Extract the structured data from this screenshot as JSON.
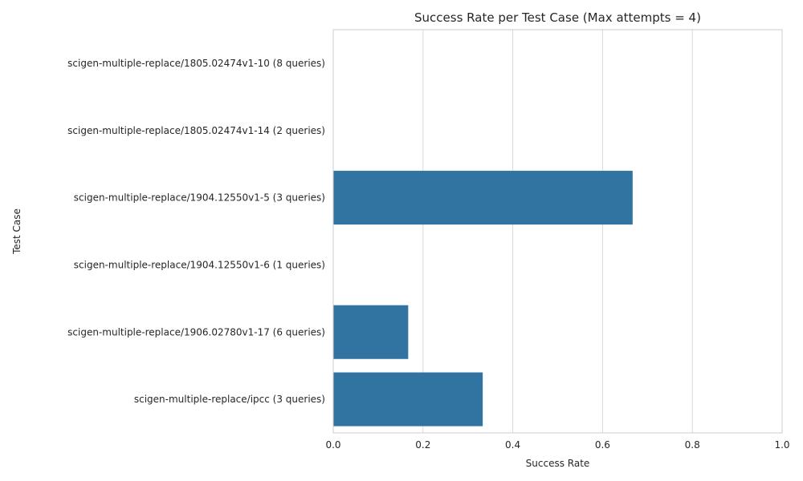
{
  "chart_data": {
    "type": "bar",
    "orientation": "horizontal",
    "title": "Success Rate per Test Case (Max attempts = 4)",
    "xlabel": "Success Rate",
    "ylabel": "Test Case",
    "xlim": [
      0,
      1
    ],
    "xticks": [
      "0.0",
      "0.2",
      "0.4",
      "0.6",
      "0.8",
      "1.0"
    ],
    "grid": "vertical",
    "bar_color": "#3274a1",
    "categories": [
      "scigen-multiple-replace/1805.02474v1-10 (8 queries)",
      "scigen-multiple-replace/1805.02474v1-14 (2 queries)",
      "scigen-multiple-replace/1904.12550v1-5 (3 queries)",
      "scigen-multiple-replace/1904.12550v1-6 (1 queries)",
      "scigen-multiple-replace/1906.02780v1-17 (6 queries)",
      "scigen-multiple-replace/ipcc (3 queries)"
    ],
    "values": [
      0,
      0,
      0.667,
      0,
      0.167,
      0.333
    ]
  }
}
